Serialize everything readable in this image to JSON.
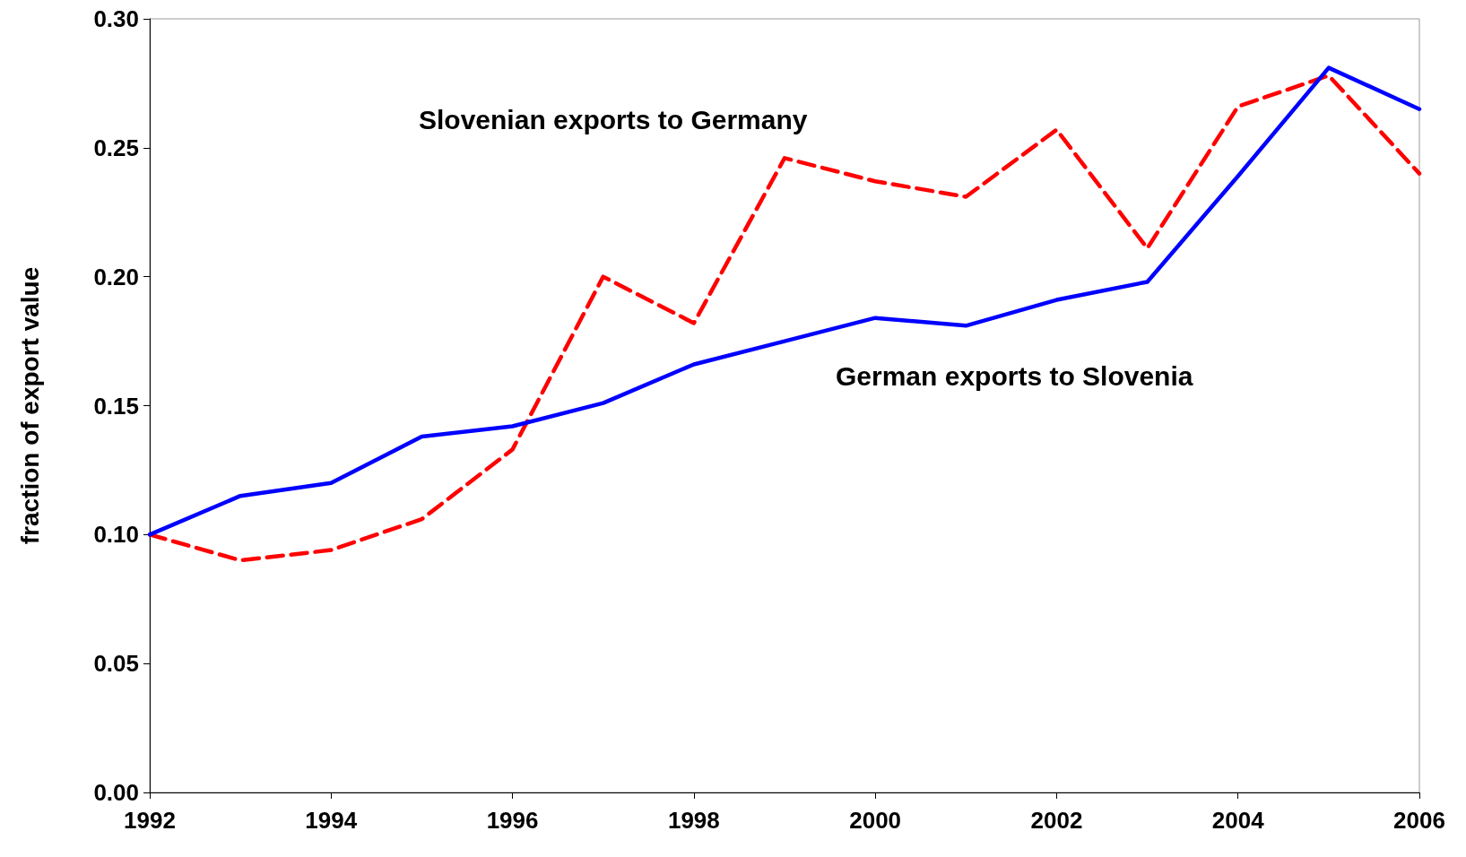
{
  "chart_data": {
    "type": "line",
    "ylabel": "fraction of export value",
    "x": [
      1992,
      1993,
      1994,
      1995,
      1996,
      1997,
      1998,
      1999,
      2000,
      2001,
      2002,
      2003,
      2004,
      2005,
      2006
    ],
    "series": [
      {
        "name": "Slovenian exports to Germany",
        "color": "#ff0000",
        "line_style": "dashed",
        "values": [
          0.1,
          0.09,
          0.094,
          0.106,
          0.133,
          0.2,
          0.182,
          0.246,
          0.237,
          0.231,
          0.257,
          0.211,
          0.266,
          0.278,
          0.24
        ]
      },
      {
        "name": "German exports to Slovenia",
        "color": "#0000ff",
        "line_style": "solid",
        "values": [
          0.1,
          0.115,
          0.12,
          0.138,
          0.142,
          0.151,
          0.166,
          0.175,
          0.184,
          0.181,
          0.191,
          0.198,
          0.239,
          0.281,
          0.265
        ]
      }
    ],
    "xlim": [
      1992,
      2006
    ],
    "xticks": [
      1992,
      1994,
      1996,
      1998,
      2000,
      2002,
      2004,
      2006
    ],
    "ylim": [
      0,
      0.3
    ],
    "yticks": [
      {
        "value": 0,
        "label": "0.00"
      },
      {
        "value": 0.05,
        "label": "0.05"
      },
      {
        "value": 0.1,
        "label": "0.10"
      },
      {
        "value": 0.15,
        "label": "0.15"
      },
      {
        "value": 0.2,
        "label": "0.20"
      },
      {
        "value": 0.25,
        "label": "0.25"
      },
      {
        "value": 0.3,
        "label": "0.30"
      }
    ],
    "grid": false,
    "legend": false,
    "marker": "none"
  }
}
